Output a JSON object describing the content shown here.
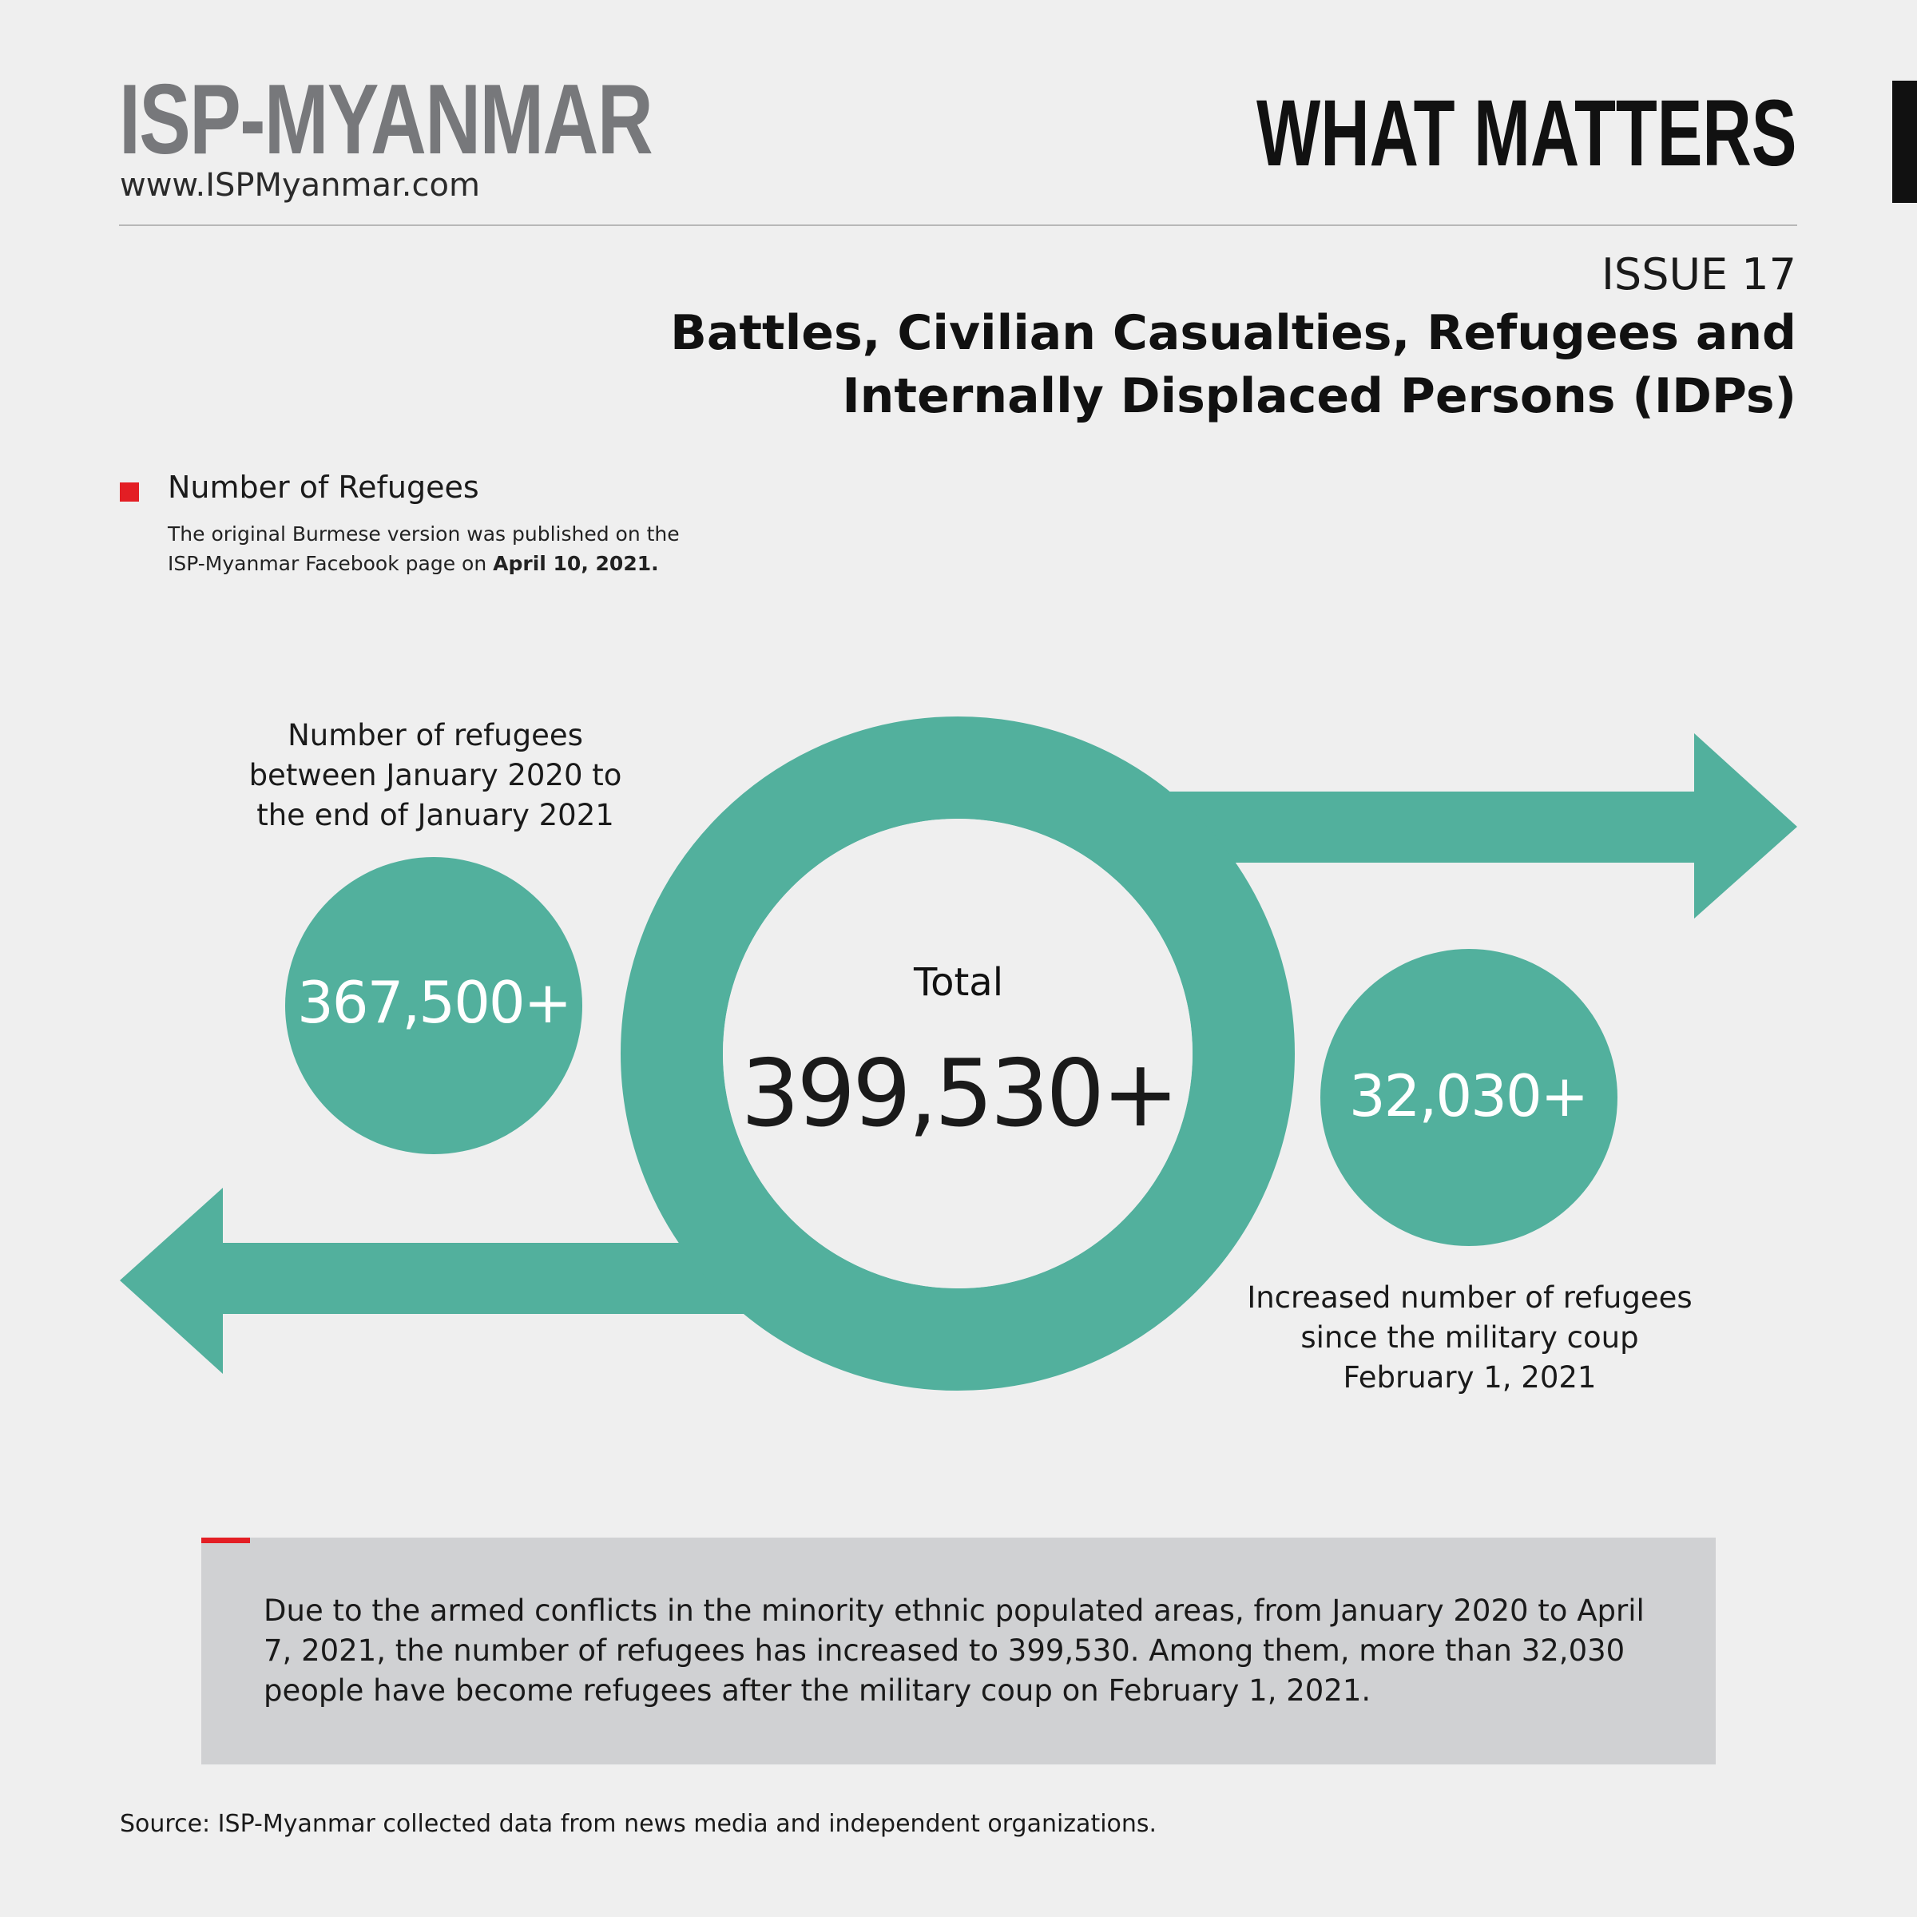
{
  "header": {
    "brand": "ISP-MYANMAR",
    "website": "www.ISPMyanmar.com",
    "series": "WHAT MATTERS"
  },
  "issue": {
    "label": "ISSUE 17",
    "title_lines": [
      "Battles, Civilian Casualties, Refugees and",
      "Internally Displaced Persons (IDPs)"
    ]
  },
  "section": {
    "heading": "Number of Refugees",
    "note_lines": [
      "The original Burmese version was published on the",
      "ISP-Myanmar Facebook page on"
    ],
    "note_date": "April 10, 2021."
  },
  "figures": {
    "before": {
      "value": "367,500+",
      "caption_lines": [
        "Number of refugees",
        "between January 2020 to",
        "the end of January 2021"
      ]
    },
    "total": {
      "label": "Total",
      "value": "399,530+"
    },
    "after": {
      "value": "32,030+",
      "caption_lines": [
        "Increased number of refugees",
        "since the military coup",
        "February 1, 2021"
      ]
    }
  },
  "summary": {
    "lines": [
      "Due to the armed conflicts in the minority ethnic populated areas, from January 2020 to April",
      "7, 2021, the number of refugees has increased to 399,530. Among them, more than 32,030",
      "people have become refugees after the military coup on February 1, 2021."
    ]
  },
  "source": "Source: ISP-Myanmar collected data from news media and independent organizations.",
  "colors": {
    "background": "#efefef",
    "teal": "#52b09d",
    "accent_red": "#e31e24",
    "brand_gray": "#77787b",
    "summary_box": "#d0d1d3"
  }
}
